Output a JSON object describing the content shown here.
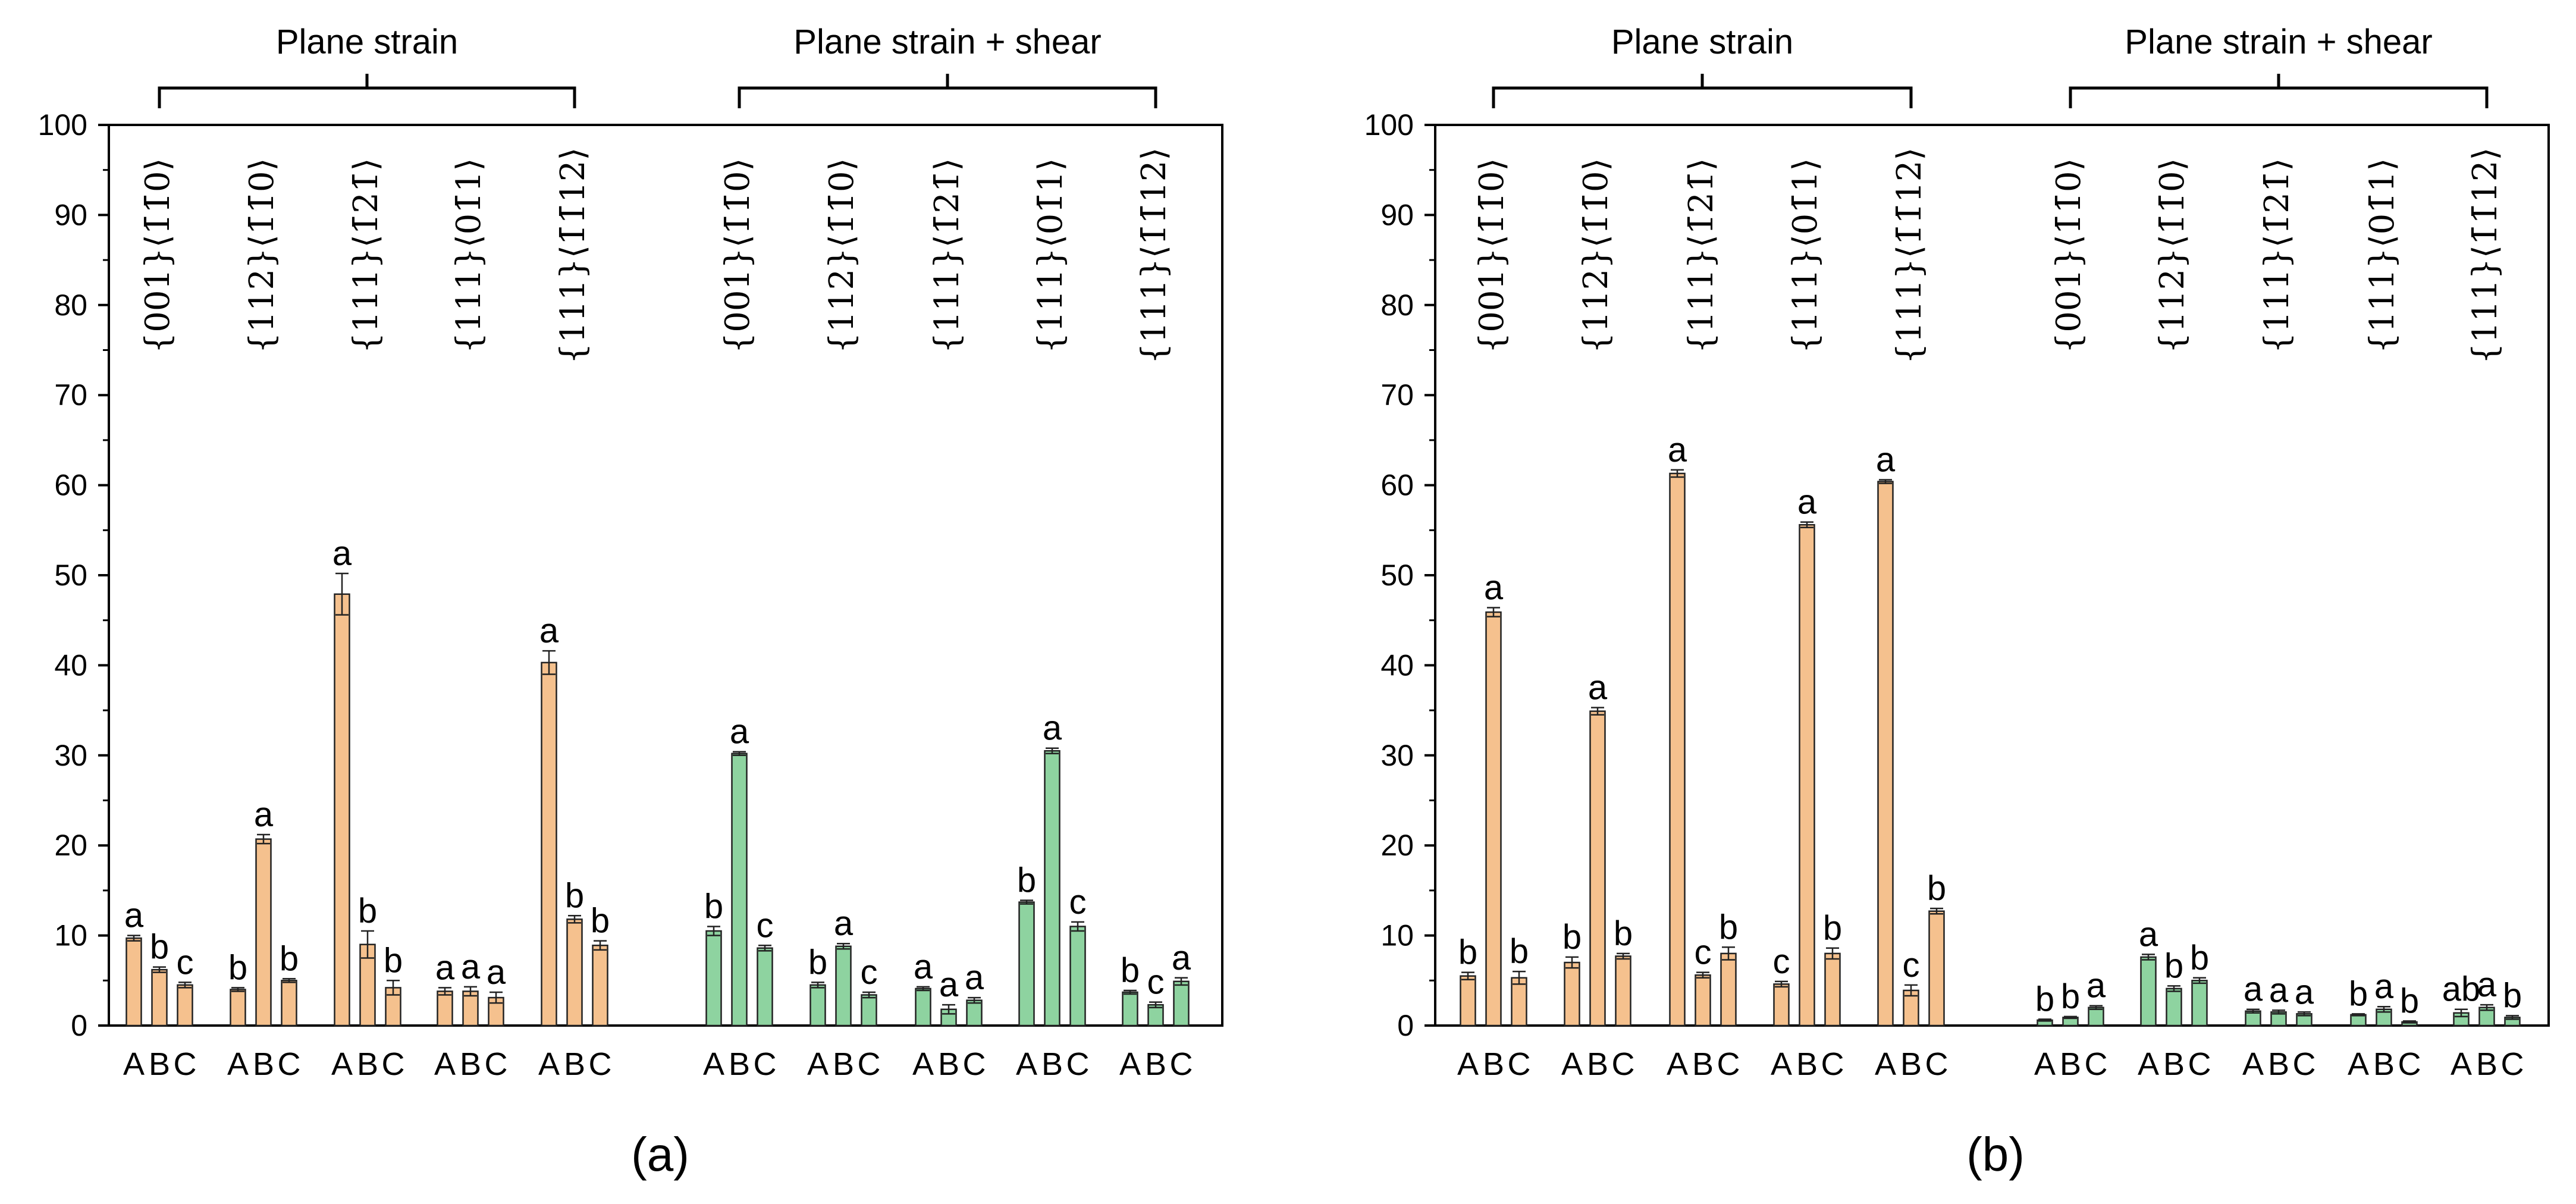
{
  "panel_labels": [
    "(a)",
    "(b)"
  ],
  "group_labels": [
    "Plane strain",
    "Plane strain + shear"
  ],
  "orientations": [
    {
      "plane": "{001}",
      "dir": "⟨1̄1̄0⟩"
    },
    {
      "plane": "{112}",
      "dir": "⟨1̄1̄0⟩"
    },
    {
      "plane": "{111}",
      "dir": "⟨1̄21̄⟩"
    },
    {
      "plane": "{111}",
      "dir": "⟨01̄1⟩"
    },
    {
      "plane": "{111}",
      "dir": "⟨1̄1̄12⟩"
    }
  ],
  "bar_labels": [
    "A",
    "B",
    "C"
  ],
  "colors": {
    "plane_strain": "#F5C18E",
    "shear": "#8ED3A0",
    "edge": "#222222"
  },
  "chart_data": [
    {
      "type": "bar",
      "panel": "(a)",
      "ylim": [
        0,
        100
      ],
      "yticks": [
        0,
        10,
        20,
        30,
        40,
        50,
        60,
        70,
        80,
        90,
        100
      ],
      "xlabel": "",
      "ylabel": "",
      "groups": [
        {
          "name": "Plane strain",
          "color": "#F5C18E",
          "sets": [
            {
              "orientation": "{001}⟨1̄1̄0⟩",
              "values": [
                9.7,
                6.2,
                4.5
              ],
              "errors": [
                0.3,
                0.3,
                0.3
              ],
              "letters": [
                "a",
                "b",
                "c"
              ]
            },
            {
              "orientation": "{112}⟨1̄1̄0⟩",
              "values": [
                4.0,
                20.7,
                5.0
              ],
              "errors": [
                0.2,
                0.5,
                0.2
              ],
              "letters": [
                "b",
                "a",
                "b"
              ]
            },
            {
              "orientation": "{111}⟨1̄21̄⟩",
              "values": [
                47.9,
                9.0,
                4.2
              ],
              "errors": [
                2.3,
                1.5,
                0.8
              ],
              "letters": [
                "a",
                "b",
                "b"
              ]
            },
            {
              "orientation": "{111}⟨01̄1⟩",
              "values": [
                3.8,
                3.8,
                3.1
              ],
              "errors": [
                0.4,
                0.5,
                0.6
              ],
              "letters": [
                "a",
                "a",
                "a"
              ]
            },
            {
              "orientation": "{111}⟨1̄1̄12⟩",
              "values": [
                40.3,
                11.8,
                8.9
              ],
              "errors": [
                1.3,
                0.4,
                0.5
              ],
              "letters": [
                "a",
                "b",
                "b"
              ]
            }
          ]
        },
        {
          "name": "Plane strain + shear",
          "color": "#8ED3A0",
          "sets": [
            {
              "orientation": "{001}⟨1̄1̄0⟩",
              "values": [
                10.5,
                30.2,
                8.6
              ],
              "errors": [
                0.5,
                0.2,
                0.3
              ],
              "letters": [
                "b",
                "a",
                "c"
              ]
            },
            {
              "orientation": "{112}⟨1̄1̄0⟩",
              "values": [
                4.5,
                8.8,
                3.4
              ],
              "errors": [
                0.3,
                0.3,
                0.3
              ],
              "letters": [
                "b",
                "a",
                "c"
              ]
            },
            {
              "orientation": "{111}⟨1̄21̄⟩",
              "values": [
                4.1,
                1.8,
                2.8
              ],
              "errors": [
                0.2,
                0.5,
                0.3
              ],
              "letters": [
                "a",
                "a",
                "a"
              ]
            },
            {
              "orientation": "{111}⟨01̄1⟩",
              "values": [
                13.7,
                30.5,
                11.0
              ],
              "errors": [
                0.2,
                0.3,
                0.5
              ],
              "letters": [
                "b",
                "a",
                "c"
              ]
            },
            {
              "orientation": "{111}⟨1̄1̄12⟩",
              "values": [
                3.7,
                2.3,
                4.9
              ],
              "errors": [
                0.2,
                0.3,
                0.4
              ],
              "letters": [
                "b",
                "c",
                "a"
              ]
            }
          ]
        }
      ]
    },
    {
      "type": "bar",
      "panel": "(b)",
      "ylim": [
        0,
        100
      ],
      "yticks": [
        0,
        10,
        20,
        30,
        40,
        50,
        60,
        70,
        80,
        90,
        100
      ],
      "xlabel": "",
      "ylabel": "",
      "groups": [
        {
          "name": "Plane strain",
          "color": "#F5C18E",
          "sets": [
            {
              "orientation": "{001}⟨1̄1̄0⟩",
              "values": [
                5.5,
                45.9,
                5.3
              ],
              "errors": [
                0.4,
                0.5,
                0.7
              ],
              "letters": [
                "b",
                "a",
                "b"
              ]
            },
            {
              "orientation": "{112}⟨1̄1̄0⟩",
              "values": [
                7.0,
                34.9,
                7.7
              ],
              "errors": [
                0.6,
                0.4,
                0.3
              ],
              "letters": [
                "b",
                "a",
                "b"
              ]
            },
            {
              "orientation": "{111}⟨1̄21̄⟩",
              "values": [
                61.3,
                5.6,
                8.0
              ],
              "errors": [
                0.4,
                0.3,
                0.7
              ],
              "letters": [
                "a",
                "c",
                "b"
              ]
            },
            {
              "orientation": "{111}⟨01̄1⟩",
              "values": [
                4.6,
                55.6,
                8.0
              ],
              "errors": [
                0.3,
                0.3,
                0.6
              ],
              "letters": [
                "c",
                "a",
                "b"
              ]
            },
            {
              "orientation": "{111}⟨1̄1̄12⟩",
              "values": [
                60.4,
                3.9,
                12.7
              ],
              "errors": [
                0.2,
                0.6,
                0.3
              ],
              "letters": [
                "a",
                "c",
                "b"
              ]
            }
          ]
        },
        {
          "name": "Plane strain + shear",
          "color": "#8ED3A0",
          "sets": [
            {
              "orientation": "{001}⟨1̄1̄0⟩",
              "values": [
                0.6,
                0.9,
                2.0
              ],
              "errors": [
                0.1,
                0.1,
                0.2
              ],
              "letters": [
                "b",
                "b",
                "a"
              ]
            },
            {
              "orientation": "{112}⟨1̄1̄0⟩",
              "values": [
                7.6,
                4.1,
                5.0
              ],
              "errors": [
                0.3,
                0.3,
                0.3
              ],
              "letters": [
                "a",
                "b",
                "b"
              ]
            },
            {
              "orientation": "{111}⟨1̄21̄⟩",
              "values": [
                1.6,
                1.5,
                1.3
              ],
              "errors": [
                0.2,
                0.2,
                0.2
              ],
              "letters": [
                "a",
                "a",
                "a"
              ]
            },
            {
              "orientation": "{111}⟨01̄1⟩",
              "values": [
                1.2,
                1.8,
                0.4
              ],
              "errors": [
                0.1,
                0.3,
                0.1
              ],
              "letters": [
                "b",
                "a",
                "b"
              ]
            },
            {
              "orientation": "{111}⟨1̄1̄12⟩",
              "values": [
                1.4,
                2.0,
                0.9
              ],
              "errors": [
                0.4,
                0.3,
                0.2
              ],
              "letters": [
                "ab",
                "a",
                "b"
              ]
            }
          ]
        }
      ]
    }
  ]
}
